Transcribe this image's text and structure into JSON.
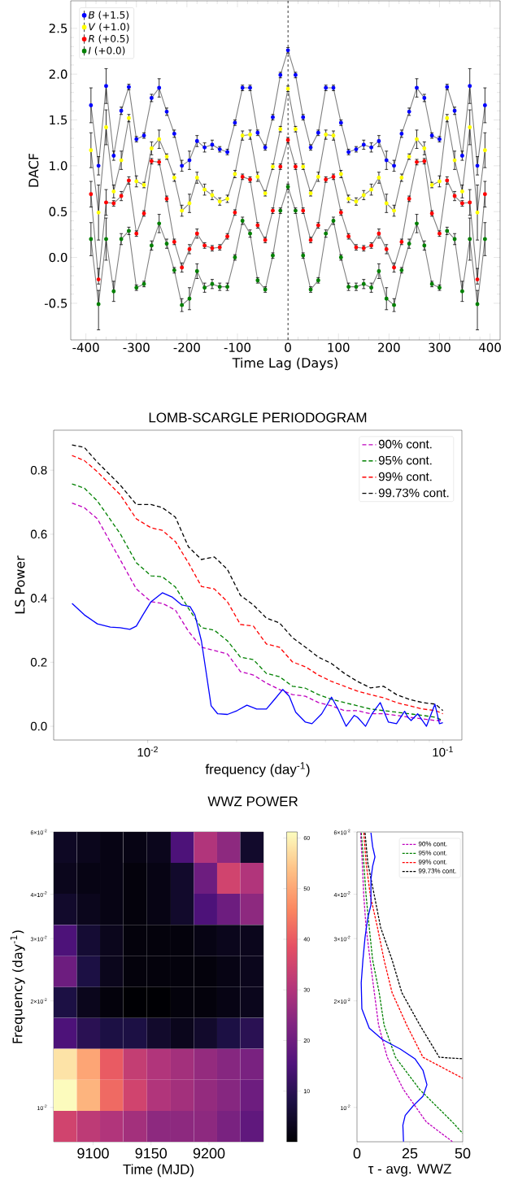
{
  "chart_data": [
    {
      "type": "line",
      "xlabel": "Time Lag (Days)",
      "ylabel": "DACF",
      "marker": "circle",
      "legend": "top left",
      "xlim": [
        -430,
        420
      ],
      "ylim": [
        -0.9,
        2.8
      ],
      "xticks": [
        -400,
        -300,
        -200,
        -100,
        0,
        100,
        200,
        300,
        400
      ],
      "yticks": [
        -0.5,
        {
          "value": 0,
          "label": "0.0"
        },
        0.5,
        {
          "value": 1,
          "label": "1.0"
        },
        1.5,
        {
          "value": 2,
          "label": "2.0"
        },
        2.5
      ],
      "ref_lines": [
        {
          "axis": "x",
          "value": 0,
          "line_style": "dashed",
          "color": "#000000"
        }
      ],
      "x": [
        -390,
        -375,
        -360,
        -345,
        -330,
        -315,
        -300,
        -285,
        -270,
        -255,
        -240,
        -225,
        -210,
        -195,
        -180,
        -165,
        -150,
        -135,
        -120,
        -105,
        -90,
        -75,
        -60,
        -45,
        -30,
        -15,
        0,
        15,
        30,
        45,
        60,
        75,
        90,
        105,
        120,
        135,
        150,
        165,
        180,
        195,
        210,
        225,
        240,
        255,
        270,
        285,
        300,
        315,
        330,
        345,
        360,
        375,
        390
      ],
      "series": [
        {
          "name": "*B* (+1.5)",
          "color": "#0000ff",
          "values": [
            1.66,
            1.0,
            1.87,
            1.11,
            1.6,
            1.86,
            1.29,
            1.33,
            1.74,
            1.85,
            1.59,
            1.35,
            1.0,
            1.06,
            1.27,
            1.2,
            1.23,
            1.18,
            1.15,
            1.47,
            1.85,
            1.85,
            1.36,
            1.2,
            1.53,
            1.99,
            2.26,
            1.99,
            1.53,
            1.2,
            1.36,
            1.85,
            1.85,
            1.47,
            1.15,
            1.18,
            1.23,
            1.2,
            1.27,
            1.06,
            1.0,
            1.35,
            1.59,
            1.85,
            1.74,
            1.33,
            1.29,
            1.86,
            1.6,
            1.11,
            1.87,
            1.0,
            1.66
          ],
          "errors": [
            0.19,
            0.1,
            0.19,
            0.05,
            0.04,
            0.03,
            0.03,
            0.03,
            0.04,
            0.1,
            0.04,
            0.04,
            0.06,
            0.1,
            0.06,
            0.05,
            0.05,
            0.03,
            0.03,
            0.03,
            0.03,
            0.03,
            0.03,
            0.03,
            0.03,
            0.03,
            0.03,
            0.03,
            0.03,
            0.03,
            0.03,
            0.03,
            0.03,
            0.03,
            0.03,
            0.03,
            0.05,
            0.05,
            0.06,
            0.1,
            0.06,
            0.04,
            0.04,
            0.1,
            0.04,
            0.03,
            0.03,
            0.03,
            0.04,
            0.05,
            0.19,
            0.1,
            0.19
          ]
        },
        {
          "name": "*V* (+1.0)",
          "color": "#ffff00",
          "values": [
            1.17,
            0.49,
            1.42,
            0.72,
            1.06,
            1.52,
            0.83,
            0.79,
            1.19,
            1.29,
            1.1,
            0.87,
            0.51,
            0.59,
            0.87,
            0.74,
            0.68,
            0.61,
            0.64,
            0.91,
            1.33,
            1.34,
            0.88,
            0.7,
            0.99,
            1.4,
            1.84,
            1.4,
            0.99,
            0.7,
            0.88,
            1.34,
            1.33,
            0.91,
            0.64,
            0.61,
            0.68,
            0.74,
            0.87,
            0.59,
            0.51,
            0.87,
            1.1,
            1.29,
            1.19,
            0.79,
            0.83,
            1.52,
            1.06,
            0.72,
            1.42,
            0.49,
            1.17
          ],
          "errors": [
            0.19,
            0.3,
            0.19,
            0.07,
            0.1,
            0.04,
            0.06,
            0.03,
            0.07,
            0.1,
            0.03,
            0.04,
            0.06,
            0.1,
            0.06,
            0.06,
            0.05,
            0.04,
            0.04,
            0.04,
            0.05,
            0.05,
            0.05,
            0.03,
            0.03,
            0.03,
            0.03,
            0.03,
            0.03,
            0.03,
            0.05,
            0.05,
            0.05,
            0.04,
            0.04,
            0.04,
            0.05,
            0.06,
            0.06,
            0.1,
            0.06,
            0.04,
            0.03,
            0.1,
            0.07,
            0.03,
            0.06,
            0.04,
            0.1,
            0.07,
            0.19,
            0.3,
            0.19
          ]
        },
        {
          "name": "*R* (+0.5)",
          "color": "#ff0000",
          "values": [
            0.69,
            -0.24,
            0.6,
            0.59,
            0.67,
            0.84,
            0.26,
            0.48,
            1.05,
            1.04,
            0.64,
            0.17,
            -0.11,
            0.09,
            0.26,
            0.13,
            0.1,
            0.11,
            0.23,
            0.49,
            0.88,
            0.85,
            0.35,
            0.19,
            0.51,
            0.99,
            1.28,
            0.99,
            0.51,
            0.19,
            0.35,
            0.85,
            0.88,
            0.49,
            0.23,
            0.11,
            0.1,
            0.13,
            0.26,
            0.09,
            -0.11,
            0.17,
            0.64,
            1.04,
            1.05,
            0.48,
            0.26,
            0.84,
            0.67,
            0.59,
            0.6,
            -0.24,
            0.69
          ],
          "errors": [
            0.14,
            [
              -0.29,
              -0.12
            ],
            0.14,
            0.03,
            0.05,
            0.04,
            0.03,
            0.03,
            0.03,
            0.03,
            0.03,
            0.03,
            0.05,
            0.05,
            0.05,
            0.03,
            0.03,
            0.03,
            0.03,
            0.03,
            0.03,
            0.03,
            0.03,
            0.03,
            0.03,
            0.03,
            0.03,
            0.03,
            0.03,
            0.03,
            0.03,
            0.03,
            0.03,
            0.03,
            0.03,
            0.03,
            0.03,
            0.03,
            0.05,
            0.05,
            0.05,
            0.03,
            0.03,
            0.03,
            0.03,
            0.03,
            0.03,
            0.04,
            0.05,
            0.03,
            0.14,
            [
              -0.29,
              -0.12
            ],
            0.14
          ]
        },
        {
          "name": "*I* (+0.0)",
          "color": "#008000",
          "values": [
            0.2,
            -0.51,
            0.2,
            -0.37,
            0.2,
            0.29,
            -0.33,
            -0.29,
            0.13,
            0.37,
            0.15,
            -0.14,
            -0.52,
            -0.45,
            -0.15,
            -0.33,
            -0.29,
            -0.32,
            -0.32,
            0.0,
            0.4,
            0.26,
            -0.25,
            -0.35,
            0.02,
            0.51,
            0.77,
            0.51,
            0.02,
            -0.35,
            -0.25,
            0.26,
            0.4,
            0.0,
            -0.32,
            -0.32,
            -0.29,
            -0.33,
            -0.15,
            -0.45,
            -0.52,
            -0.14,
            0.15,
            0.37,
            0.13,
            -0.29,
            -0.33,
            0.29,
            0.2,
            -0.37,
            0.2,
            -0.51,
            0.2
          ],
          "errors": [
            0.18,
            [
              -0.79,
              -0.36
            ],
            0.23,
            0.11,
            0.06,
            0.04,
            0.03,
            0.03,
            0.05,
            0.1,
            0.05,
            0.03,
            0.07,
            0.12,
            0.08,
            0.05,
            0.05,
            0.04,
            0.04,
            0.03,
            0.04,
            0.04,
            0.03,
            0.03,
            0.03,
            0.03,
            0.03,
            0.03,
            0.03,
            0.03,
            0.03,
            0.04,
            0.04,
            0.03,
            0.04,
            0.04,
            0.05,
            0.05,
            0.08,
            0.12,
            0.07,
            0.03,
            0.05,
            0.1,
            0.05,
            0.03,
            0.03,
            0.04,
            0.06,
            0.11,
            0.23,
            [
              -0.79,
              -0.36
            ],
            0.18
          ]
        }
      ]
    },
    {
      "type": "line",
      "title": "LOMB-SCARGLE PERIODOGRAM",
      "xlabel": "frequency (day$^{-1}$)",
      "ylabel": "LS Power",
      "log": "x",
      "legend": "top right",
      "xlim": [
        0.0048,
        0.116
      ],
      "ylim": [
        -0.043,
        0.925
      ],
      "xticks": [
        {
          "value": 0.01,
          "label": "10$^{-2}$"
        },
        {
          "value": 0.1,
          "label": "10$^{-1}$"
        }
      ],
      "yticks": [
        {
          "value": 0,
          "label": "0.0"
        },
        0.2,
        0.4,
        0.6,
        0.8
      ],
      "x": [
        0.00554,
        0.0061,
        0.00675,
        0.00806,
        0.00915,
        0.01026,
        0.01121,
        0.01241,
        0.01373,
        0.0152,
        0.01682,
        0.01862,
        0.02061,
        0.02281,
        0.02524,
        0.02794,
        0.03093,
        0.03422,
        0.03788,
        0.04195,
        0.04642,
        0.05137,
        0.05685,
        0.06293,
        0.06966,
        0.07709,
        0.08533,
        0.09445,
        0.1
      ],
      "series": [
        {
          "name": "90% cont.",
          "color": "#bf00bf",
          "line_style": "dashed",
          "values": [
            0.697,
            0.683,
            0.648,
            0.521,
            0.429,
            0.389,
            0.384,
            0.363,
            0.297,
            0.247,
            0.237,
            0.226,
            0.171,
            0.16,
            0.135,
            0.115,
            0.099,
            0.094,
            0.074,
            0.064,
            0.049,
            0.049,
            0.039,
            0.039,
            0.034,
            0.028,
            0.023,
            0.018,
            0.018
          ]
        },
        {
          "name": "95% cont.",
          "color": "#008000",
          "line_style": "dashed",
          "values": [
            0.757,
            0.744,
            0.704,
            0.602,
            0.511,
            0.47,
            0.467,
            0.435,
            0.369,
            0.308,
            0.3,
            0.267,
            0.216,
            0.208,
            0.165,
            0.155,
            0.125,
            0.119,
            0.099,
            0.084,
            0.074,
            0.064,
            0.054,
            0.049,
            0.044,
            0.039,
            0.034,
            0.028,
            0.018
          ]
        },
        {
          "name": "99% cont.",
          "color": "#ff0000",
          "line_style": "dashed",
          "values": [
            0.846,
            0.83,
            0.795,
            0.724,
            0.648,
            0.62,
            0.612,
            0.577,
            0.511,
            0.437,
            0.429,
            0.389,
            0.318,
            0.313,
            0.257,
            0.247,
            0.201,
            0.186,
            0.16,
            0.14,
            0.125,
            0.11,
            0.099,
            0.089,
            0.074,
            0.064,
            0.054,
            0.049,
            0.039
          ]
        },
        {
          "name": "99.73% cont.",
          "color": "#000000",
          "line_style": "dashed",
          "values": [
            0.879,
            0.871,
            0.825,
            0.754,
            0.693,
            0.693,
            0.683,
            0.653,
            0.561,
            0.521,
            0.529,
            0.49,
            0.409,
            0.379,
            0.338,
            0.323,
            0.277,
            0.247,
            0.216,
            0.196,
            0.165,
            0.14,
            0.12,
            0.125,
            0.099,
            0.084,
            0.074,
            0.069,
            0.049
          ]
        },
        {
          "color": "#0000ff",
          "line_style": "solid",
          "x": [
            0.00554,
            0.0061,
            0.00675,
            0.00747,
            0.00806,
            0.0087,
            0.00915,
            0.00963,
            0.01026,
            0.01121,
            0.01209,
            0.01305,
            0.01391,
            0.01445,
            0.0152,
            0.01579,
            0.0164,
            0.01726,
            0.01862,
            0.02009,
            0.02168,
            0.02339,
            0.02524,
            0.0269,
            0.02867,
            0.03015,
            0.03172,
            0.03422,
            0.03602,
            0.03886,
            0.04195,
            0.04411,
            0.047,
            0.05009,
            0.05137,
            0.05472,
            0.05757,
            0.06137,
            0.06539,
            0.06966,
            0.07422,
            0.07612,
            0.07807,
            0.08215,
            0.088,
            0.09398,
            0.09737,
            0.1
          ],
          "values": [
            0.384,
            0.348,
            0.32,
            0.31,
            0.308,
            0.303,
            0.313,
            0.348,
            0.389,
            0.417,
            0.404,
            0.379,
            0.374,
            0.348,
            0.267,
            0.166,
            0.064,
            0.039,
            0.037,
            0.049,
            0.066,
            0.054,
            0.054,
            0.084,
            0.115,
            0.094,
            0.044,
            0.013,
            0.008,
            0.039,
            0.091,
            0.054,
            0.0,
            0.034,
            0.028,
            0.0,
            0.039,
            0.074,
            0.013,
            0.008,
            0.047,
            0.028,
            0.018,
            0.039,
            0.0,
            0.069,
            0.008,
            0.011
          ]
        }
      ]
    },
    {
      "type": "heatmap",
      "title": "WWZ POWER",
      "xlabel": "Time (MJD)",
      "ylabel": "Frequency (day$^{-1}$)",
      "log": "y",
      "xlim": [
        9066,
        9247
      ],
      "ylim": [
        0.008,
        0.06
      ],
      "xticks": [
        9100,
        9150,
        9200
      ],
      "yticks": [
        {
          "value": 0.01,
          "label": "10$^{-2}$"
        },
        {
          "value": 0.02,
          "label": "2×10$^{-2}$"
        },
        {
          "value": 0.03,
          "label": "3×10$^{-2}$"
        },
        {
          "value": 0.04,
          "label": "4×10$^{-2}$"
        },
        {
          "value": 0.06,
          "label": "6×10$^{-2}$"
        }
      ],
      "clim": [
        0,
        61.2
      ],
      "cticks": [
        10,
        20,
        30,
        40,
        50,
        60
      ],
      "x": [
        9076,
        9096,
        9116,
        9136,
        9157,
        9177,
        9197,
        9217,
        9237
      ],
      "y": [
        0.0543,
        0.0444,
        0.0363,
        0.0296,
        0.0242,
        0.0198,
        0.0162,
        0.01324,
        0.01082,
        0.00885
      ],
      "cells": [
        [
          4,
          3,
          2,
          2,
          3,
          15,
          30,
          25,
          5
        ],
        [
          3,
          2,
          2,
          1,
          2,
          5,
          20,
          35,
          30
        ],
        [
          5,
          3,
          2,
          1,
          2,
          5,
          15,
          20,
          25
        ],
        [
          15,
          6,
          3,
          1,
          1,
          1,
          2,
          3,
          3
        ],
        [
          20,
          8,
          3,
          1,
          1,
          1,
          1,
          2,
          3
        ],
        [
          8,
          3,
          1,
          0,
          0,
          1,
          1,
          2,
          3
        ],
        [
          15,
          10,
          8,
          8,
          5,
          3,
          5,
          8,
          10
        ],
        [
          58,
          50,
          40,
          33,
          30,
          28,
          26,
          24,
          22
        ],
        [
          61,
          52,
          42,
          35,
          30,
          28,
          26,
          24,
          20
        ],
        [
          35,
          32,
          30,
          28,
          25,
          25,
          25,
          22,
          18
        ]
      ]
    },
    {
      "type": "line",
      "xlabel": "τ - avg. WWZ",
      "log": "y",
      "legend": "top right",
      "xlim": [
        0,
        50
      ],
      "ylim": [
        0.008,
        0.06
      ],
      "xticks": [
        0,
        25,
        50
      ],
      "yticks": [
        {
          "value": 0.01,
          "label": "10$^{-2}$"
        },
        {
          "value": 0.02,
          "label": "2×10$^{-2}$"
        },
        {
          "value": 0.03,
          "label": "3×10$^{-2}$"
        },
        {
          "value": 0.04,
          "label": "4×10$^{-2}$"
        },
        {
          "value": 0.06,
          "label": "6×10$^{-2}$"
        }
      ],
      "series": [
        {
          "name": "90% cont.",
          "color": "#bf00bf",
          "line_style": "dashed",
          "x": [
            1.7,
            2.5,
            3.2,
            4.3,
            6.2,
            8.2,
            10.2,
            14.3,
            22.0,
            32.8,
            45.1
          ],
          "values": [
            0.0597,
            0.0491,
            0.0397,
            0.0322,
            0.0261,
            0.0211,
            0.0171,
            0.01386,
            0.01123,
            0.0091,
            0.00801
          ]
        },
        {
          "name": "95% cont.",
          "color": "#008000",
          "line_style": "dashed",
          "x": [
            2.0,
            3.2,
            4.3,
            5.8,
            7.4,
            10.5,
            12.8,
            18.2,
            29.7,
            45.1,
            50
          ],
          "values": [
            0.0597,
            0.0491,
            0.0397,
            0.0322,
            0.0261,
            0.0211,
            0.0171,
            0.01386,
            0.01123,
            0.0091,
            0.00845
          ]
        },
        {
          "name": "99% cont.",
          "color": "#ff0000",
          "line_style": "dashed",
          "x": [
            3.2,
            4.3,
            6.3,
            9.7,
            12.8,
            16.6,
            23.5,
            31.2,
            50
          ],
          "values": [
            0.0597,
            0.0491,
            0.0397,
            0.0322,
            0.0261,
            0.0211,
            0.0171,
            0.01386,
            0.01209
          ]
        },
        {
          "name": "99.73% cont.",
          "color": "#000000",
          "line_style": "dashed",
          "x": [
            3.8,
            5.1,
            8.2,
            11.2,
            16.6,
            21.2,
            29.7,
            38.9,
            50
          ],
          "values": [
            0.0597,
            0.0491,
            0.0397,
            0.0322,
            0.0261,
            0.0211,
            0.0171,
            0.01386,
            0.01372
          ]
        },
        {
          "color": "#0000ff",
          "line_style": "solid",
          "x": [
            6.6,
            7.4,
            8.5,
            7.4,
            6.6,
            6.6,
            5.1,
            3.8,
            2.8,
            2.0,
            2.3,
            5.8,
            12.0,
            20.5,
            27.4,
            31.2,
            33.1,
            31.2,
            26.6,
            22.8,
            21.7,
            22.0
          ],
          "values": [
            0.0597,
            0.0545,
            0.051,
            0.048,
            0.0442,
            0.0373,
            0.0343,
            0.0302,
            0.0261,
            0.0225,
            0.019,
            0.01676,
            0.01556,
            0.01462,
            0.01372,
            0.01274,
            0.01159,
            0.01076,
            0.01011,
            0.00949,
            0.00891,
            0.00801
          ]
        }
      ]
    }
  ]
}
